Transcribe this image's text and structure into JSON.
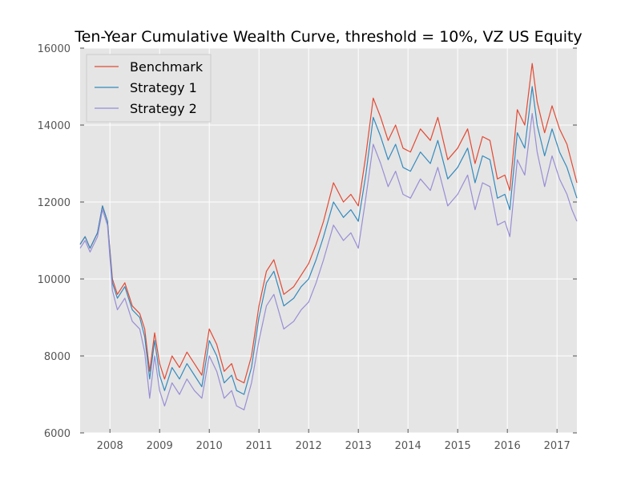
{
  "chart_data": {
    "type": "line",
    "title": "Ten-Year Cumulative Wealth Curve, threshold = 10%, VZ US Equity",
    "xlabel": "",
    "ylabel": "",
    "xlim": [
      2007.4,
      2017.4
    ],
    "ylim": [
      6000,
      16000
    ],
    "x_ticks": [
      "2008",
      "2009",
      "2010",
      "2011",
      "2012",
      "2013",
      "2014",
      "2015",
      "2016",
      "2017"
    ],
    "y_ticks": [
      "6000",
      "8000",
      "10000",
      "12000",
      "14000",
      "16000"
    ],
    "grid": true,
    "legend_position": "top-left",
    "colors": {
      "background": "#e5e5e5",
      "grid": "#ffffff",
      "Benchmark": "#e24a33",
      "Strategy 1": "#348abd",
      "Strategy 2": "#988ed5"
    },
    "series": [
      {
        "name": "Benchmark",
        "x": [
          2007.4,
          2007.5,
          2007.6,
          2007.75,
          2007.85,
          2007.95,
          2008.05,
          2008.15,
          2008.3,
          2008.45,
          2008.6,
          2008.7,
          2008.8,
          2008.9,
          2009.0,
          2009.1,
          2009.25,
          2009.4,
          2009.55,
          2009.7,
          2009.85,
          2010.0,
          2010.15,
          2010.3,
          2010.45,
          2010.55,
          2010.7,
          2010.85,
          2011.0,
          2011.15,
          2011.3,
          2011.5,
          2011.7,
          2011.85,
          2012.0,
          2012.15,
          2012.3,
          2012.5,
          2012.7,
          2012.85,
          2013.0,
          2013.15,
          2013.3,
          2013.45,
          2013.6,
          2013.75,
          2013.9,
          2014.05,
          2014.25,
          2014.45,
          2014.6,
          2014.8,
          2015.0,
          2015.2,
          2015.35,
          2015.5,
          2015.65,
          2015.8,
          2015.95,
          2016.05,
          2016.2,
          2016.35,
          2016.5,
          2016.6,
          2016.75,
          2016.9,
          2017.05,
          2017.2,
          2017.3,
          2017.4
        ],
        "values": [
          10900,
          11100,
          10800,
          11200,
          11900,
          11500,
          10000,
          9600,
          9900,
          9300,
          9100,
          8700,
          7600,
          8600,
          7800,
          7400,
          8000,
          7700,
          8100,
          7800,
          7500,
          8700,
          8300,
          7600,
          7800,
          7400,
          7300,
          8000,
          9300,
          10200,
          10500,
          9600,
          9800,
          10100,
          10400,
          10900,
          11500,
          12500,
          12000,
          12200,
          11900,
          13200,
          14700,
          14200,
          13600,
          14000,
          13400,
          13300,
          13900,
          13600,
          14200,
          13100,
          13400,
          13900,
          13000,
          13700,
          13600,
          12600,
          12700,
          12300,
          14400,
          14000,
          15600,
          14600,
          13800,
          14500,
          13900,
          13500,
          13000,
          12500
        ]
      },
      {
        "name": "Strategy 1",
        "x": [
          2007.4,
          2007.5,
          2007.6,
          2007.75,
          2007.85,
          2007.95,
          2008.05,
          2008.15,
          2008.3,
          2008.45,
          2008.6,
          2008.7,
          2008.8,
          2008.9,
          2009.0,
          2009.1,
          2009.25,
          2009.4,
          2009.55,
          2009.7,
          2009.85,
          2010.0,
          2010.15,
          2010.3,
          2010.45,
          2010.55,
          2010.7,
          2010.85,
          2011.0,
          2011.15,
          2011.3,
          2011.5,
          2011.7,
          2011.85,
          2012.0,
          2012.15,
          2012.3,
          2012.5,
          2012.7,
          2012.85,
          2013.0,
          2013.15,
          2013.3,
          2013.45,
          2013.6,
          2013.75,
          2013.9,
          2014.05,
          2014.25,
          2014.45,
          2014.6,
          2014.8,
          2015.0,
          2015.2,
          2015.35,
          2015.5,
          2015.65,
          2015.8,
          2015.95,
          2016.05,
          2016.2,
          2016.35,
          2016.5,
          2016.6,
          2016.75,
          2016.9,
          2017.05,
          2017.2,
          2017.3,
          2017.4
        ],
        "values": [
          10900,
          11100,
          10800,
          11200,
          11900,
          11500,
          9900,
          9500,
          9800,
          9200,
          9000,
          8500,
          7400,
          8400,
          7500,
          7100,
          7700,
          7400,
          7800,
          7500,
          7200,
          8400,
          8000,
          7300,
          7500,
          7100,
          7000,
          7700,
          9000,
          9900,
          10200,
          9300,
          9500,
          9800,
          10000,
          10500,
          11100,
          12000,
          11600,
          11800,
          11500,
          12700,
          14200,
          13700,
          13100,
          13500,
          12900,
          12800,
          13300,
          13000,
          13600,
          12600,
          12900,
          13400,
          12500,
          13200,
          13100,
          12100,
          12200,
          11800,
          13800,
          13400,
          15000,
          14000,
          13200,
          13900,
          13300,
          12900,
          12500,
          12100
        ]
      },
      {
        "name": "Strategy 2",
        "x": [
          2007.4,
          2007.5,
          2007.6,
          2007.75,
          2007.85,
          2007.95,
          2008.05,
          2008.15,
          2008.3,
          2008.45,
          2008.6,
          2008.7,
          2008.8,
          2008.9,
          2009.0,
          2009.1,
          2009.25,
          2009.4,
          2009.55,
          2009.7,
          2009.85,
          2010.0,
          2010.15,
          2010.3,
          2010.45,
          2010.55,
          2010.7,
          2010.85,
          2011.0,
          2011.15,
          2011.3,
          2011.5,
          2011.7,
          2011.85,
          2012.0,
          2012.15,
          2012.3,
          2012.5,
          2012.7,
          2012.85,
          2013.0,
          2013.15,
          2013.3,
          2013.45,
          2013.6,
          2013.75,
          2013.9,
          2014.05,
          2014.25,
          2014.45,
          2014.6,
          2014.8,
          2015.0,
          2015.2,
          2015.35,
          2015.5,
          2015.65,
          2015.8,
          2015.95,
          2016.05,
          2016.2,
          2016.35,
          2016.5,
          2016.6,
          2016.75,
          2016.9,
          2017.05,
          2017.2,
          2017.3,
          2017.4
        ],
        "values": [
          10800,
          11000,
          10700,
          11100,
          11800,
          11400,
          9700,
          9200,
          9500,
          8900,
          8700,
          8100,
          6900,
          8000,
          7100,
          6700,
          7300,
          7000,
          7400,
          7100,
          6900,
          8000,
          7600,
          6900,
          7100,
          6700,
          6600,
          7300,
          8400,
          9300,
          9600,
          8700,
          8900,
          9200,
          9400,
          9900,
          10500,
          11400,
          11000,
          11200,
          10800,
          12100,
          13500,
          13000,
          12400,
          12800,
          12200,
          12100,
          12600,
          12300,
          12900,
          11900,
          12200,
          12700,
          11800,
          12500,
          12400,
          11400,
          11500,
          11100,
          13100,
          12700,
          14300,
          13300,
          12400,
          13200,
          12600,
          12200,
          11800,
          11500
        ]
      }
    ]
  }
}
